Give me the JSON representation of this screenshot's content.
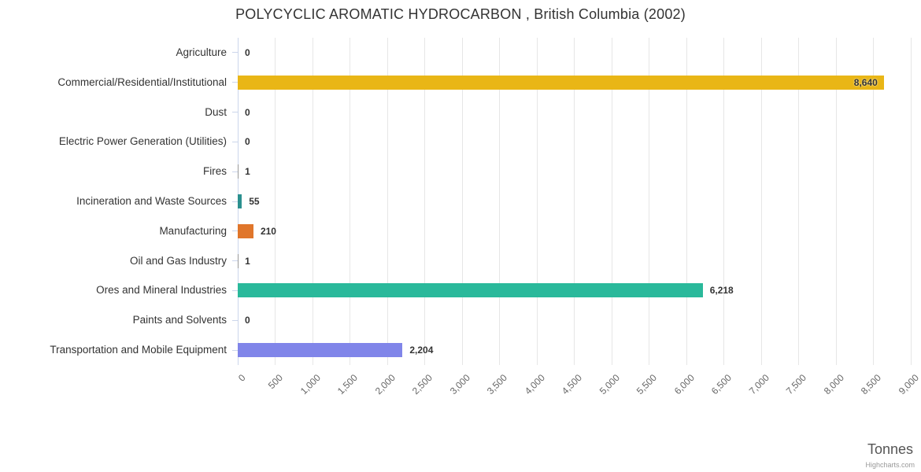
{
  "chart_data": {
    "type": "bar",
    "title": "POLYCYCLIC AROMATIC HYDROCARBON , British Columbia (2002)",
    "categories": [
      "Agriculture",
      "Commercial/Residential/Institutional",
      "Dust",
      "Electric Power Generation (Utilities)",
      "Fires",
      "Incineration and Waste Sources",
      "Manufacturing",
      "Oil and Gas Industry",
      "Ores and Mineral Industries",
      "Paints and Solvents",
      "Transportation and Mobile Equipment"
    ],
    "values": [
      0,
      8640,
      0,
      0,
      1,
      55,
      210,
      1,
      6218,
      0,
      2204
    ],
    "value_labels": [
      "0",
      "8,640",
      "0",
      "0",
      "1",
      "55",
      "210",
      "1",
      "6,218",
      "0",
      "2,204"
    ],
    "bar_colors": [
      null,
      "#e9b616",
      null,
      null,
      null,
      "#2b908f",
      "#e0762b",
      null,
      "#2ab99b",
      null,
      "#8085e9"
    ],
    "xlabel": "Tonnes",
    "xlim": [
      0,
      9000
    ],
    "tick_interval": 500,
    "tick_labels": [
      "0",
      "500",
      "1,000",
      "1,500",
      "2,000",
      "2,500",
      "3,000",
      "3,500",
      "4,000",
      "4,500",
      "5,000",
      "5,500",
      "6,000",
      "6,500",
      "7,000",
      "7,500",
      "8,000",
      "8,500",
      "9,000"
    ],
    "grid": true,
    "legend": "none",
    "credit": "Highcharts.com",
    "colors": {
      "grid": "#e6e6e6",
      "axis": "#ccd6eb",
      "title_text": "#333333",
      "label_text": "#333333",
      "tick_text": "#666666",
      "value_text": "#333333",
      "fallback_bar": "#999999"
    }
  }
}
